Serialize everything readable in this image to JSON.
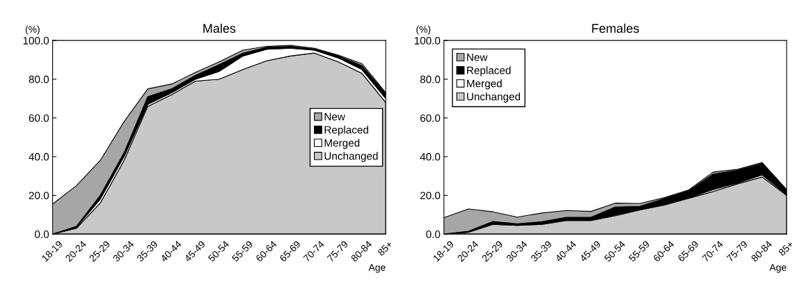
{
  "chart_data": [
    {
      "type": "area",
      "title": "Males",
      "xlabel": "Age",
      "ylabel": "(%)",
      "stacked": true,
      "legend": "right",
      "grid": false,
      "categories": [
        "18-19",
        "20-24",
        "25-29",
        "30-34",
        "35-39",
        "40-44",
        "45-49",
        "50-54",
        "55-59",
        "60-64",
        "65-69",
        "70-74",
        "75-79",
        "80-84",
        "85+"
      ],
      "ylim": [
        0,
        100
      ],
      "yticks": [
        {
          "value": 0,
          "label": "0.0"
        },
        {
          "value": 20,
          "label": "20.0"
        },
        {
          "value": 40,
          "label": "40.0"
        },
        {
          "value": 60,
          "label": "60.0"
        },
        {
          "value": 80,
          "label": "80.0"
        },
        {
          "value": 100,
          "label": "100.0"
        }
      ],
      "series": [
        {
          "name": "Unchanged",
          "color": "#c8c8c8",
          "values": [
            0,
            3,
            16,
            38,
            66,
            72,
            79,
            80,
            85,
            89.5,
            92,
            93.5,
            89,
            83,
            68
          ]
        },
        {
          "name": "Merged",
          "color": "#ffffff",
          "values": [
            0,
            0.5,
            2,
            2,
            1,
            1,
            1,
            4,
            7,
            6,
            4,
            1.5,
            2,
            2,
            2
          ]
        },
        {
          "name": "Replaced",
          "color": "#000000",
          "values": [
            0,
            0.5,
            2,
            2,
            4,
            2,
            2,
            3.5,
            1.5,
            1,
            1,
            0.5,
            1,
            2,
            2.5
          ]
        },
        {
          "name": "New",
          "color": "#a6a6a6",
          "values": [
            15.5,
            21,
            18,
            16,
            4,
            2.5,
            1.5,
            1.5,
            1.5,
            0.5,
            0.5,
            0.5,
            0.5,
            1,
            0.5
          ]
        }
      ]
    },
    {
      "type": "area",
      "title": "Females",
      "xlabel": "Age",
      "ylabel": "(%)",
      "stacked": true,
      "legend": "top left",
      "grid": false,
      "categories": [
        "18-19",
        "20-24",
        "25-29",
        "30-34",
        "35-39",
        "40-44",
        "45-49",
        "50-54",
        "55-59",
        "60-64",
        "65-69",
        "70-74",
        "75-79",
        "80-84",
        "85+"
      ],
      "ylim": [
        0,
        100
      ],
      "yticks": [
        {
          "value": 0,
          "label": "0.0"
        },
        {
          "value": 20,
          "label": "20.0"
        },
        {
          "value": 40,
          "label": "40.0"
        },
        {
          "value": 60,
          "label": "60.0"
        },
        {
          "value": 80,
          "label": "80.0"
        },
        {
          "value": 100,
          "label": "100.0"
        }
      ],
      "series": [
        {
          "name": "Unchanged",
          "color": "#c8c8c8",
          "values": [
            0,
            1,
            5,
            4.5,
            5,
            7,
            7,
            9.5,
            12.5,
            15,
            18.5,
            22,
            26,
            29.5,
            20
          ]
        },
        {
          "name": "Merged",
          "color": "#ffffff",
          "values": [
            0,
            0,
            0.5,
            0.3,
            0.4,
            0.2,
            0.2,
            0.5,
            0.3,
            0.3,
            0.3,
            1,
            0.5,
            1,
            0.5
          ]
        },
        {
          "name": "Replaced",
          "color": "#000000",
          "values": [
            0,
            0.5,
            1,
            0.5,
            1,
            1.5,
            1.5,
            4,
            1.5,
            3,
            3.5,
            8,
            6.5,
            6,
            2
          ]
        },
        {
          "name": "New",
          "color": "#a6a6a6",
          "values": [
            8.5,
            11.5,
            5,
            3.5,
            4.5,
            3.5,
            3,
            2,
            1.5,
            0.5,
            0.5,
            1,
            0.5,
            0.5,
            0.5
          ]
        }
      ]
    }
  ]
}
